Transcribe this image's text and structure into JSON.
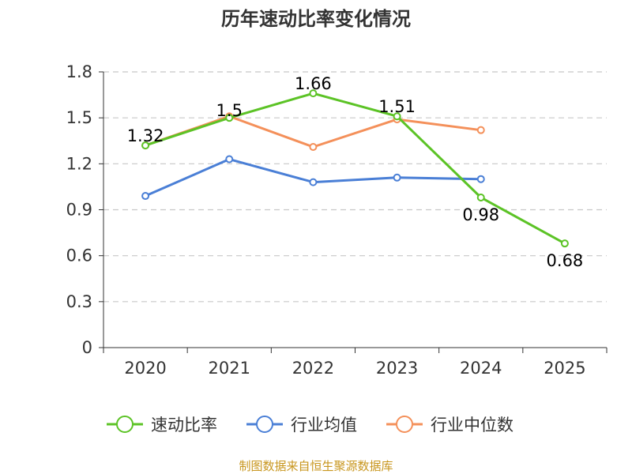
{
  "chart_data": {
    "type": "line",
    "title": "历年速动比率变化情况",
    "categories": [
      "2020",
      "2021",
      "2022",
      "2023",
      "2024",
      "2025"
    ],
    "ylim": [
      0,
      1.8
    ],
    "yticks": [
      "0",
      "0.3",
      "0.6",
      "0.9",
      "1.2",
      "1.5",
      "1.8"
    ],
    "grid": true,
    "legend_position": "bottom-center",
    "series": [
      {
        "name": "速动比率",
        "color": "#5cc326",
        "values": [
          1.32,
          1.5,
          1.66,
          1.51,
          0.98,
          0.68
        ],
        "labels": [
          "1.32",
          "1.5",
          "1.66",
          "1.51",
          "0.98",
          "0.68"
        ]
      },
      {
        "name": "行业均值",
        "color": "#4a7fd6",
        "values": [
          0.99,
          1.23,
          1.08,
          1.11,
          1.1,
          null
        ]
      },
      {
        "name": "行业中位数",
        "color": "#f4905a",
        "values": [
          1.32,
          1.51,
          1.31,
          1.49,
          1.42,
          null
        ]
      }
    ],
    "source": "制图数据来自恒生聚源数据库"
  }
}
